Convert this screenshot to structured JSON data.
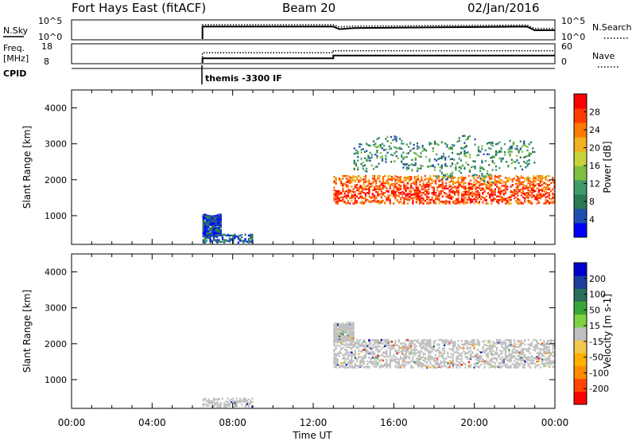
{
  "header": {
    "station": "Fort Hays East (fitACF)",
    "beam": "Beam 20",
    "date": "02/Jan/2016"
  },
  "meta_panels": {
    "nsky": {
      "label": "N.Sky",
      "tick_top": "10^5",
      "tick_bottom": "10^0"
    },
    "nsearch": {
      "label": "N.Search",
      "tick_top": "10^5",
      "tick_bottom": "10^0"
    },
    "freq": {
      "label_top": "Freq.",
      "label_unit": "[MHz]",
      "tick_top": "18",
      "tick_bottom": "8"
    },
    "nave": {
      "label": "Nave",
      "tick_top": "60",
      "tick_bottom": "0"
    },
    "cpid": {
      "label": "CPID",
      "program": "themis -3300 IF"
    }
  },
  "colors": {
    "power_scale": [
      "#0000ff",
      "#1f4fb0",
      "#2a7a52",
      "#3f9a6a",
      "#7fbf3f",
      "#c8d23a",
      "#f0b020",
      "#ff7a00",
      "#ff3c00",
      "#ff0000"
    ],
    "velocity_scale": [
      "#ff0000",
      "#ff4500",
      "#ff8c00",
      "#ffb000",
      "#f2c94c",
      "#c0c0c0",
      "#7dd341",
      "#3aa63a",
      "#2a6f5a",
      "#1f3fa0",
      "#0000cc"
    ],
    "ground_scatter": "#c0c0c0"
  },
  "chart_data": [
    {
      "type": "line",
      "name": "nsky-nsearch",
      "x": [
        6.5,
        6.5,
        13.0,
        13.3,
        14.0,
        22.6,
        23.0,
        24.0
      ],
      "series": [
        {
          "name": "N.Sky",
          "values": [
            0,
            3.4,
            3.4,
            2.7,
            3.0,
            3.4,
            2.4,
            2.4
          ]
        },
        {
          "name": "N.Search",
          "values": [
            0,
            3.9,
            3.9,
            3.3,
            3.5,
            3.8,
            2.9,
            2.9
          ]
        }
      ],
      "ylim": [
        0,
        5
      ]
    },
    {
      "type": "line",
      "name": "freq-nave",
      "x": [
        6.5,
        6.5,
        13.0,
        13.0,
        24.0
      ],
      "series": [
        {
          "name": "Freq.",
          "values": [
            8,
            10.5,
            10.5,
            12.0,
            12.0
          ]
        },
        {
          "name": "Nave",
          "values": [
            0,
            33,
            33,
            40,
            40
          ]
        }
      ],
      "ylim": [
        8,
        18
      ]
    },
    {
      "type": "heatmap",
      "name": "power",
      "title": "",
      "xlabel": "",
      "ylabel": "Slant Range [km]",
      "xlim": [
        0,
        24
      ],
      "ylim": [
        200,
        4500
      ],
      "yticks": [
        1000,
        2000,
        3000,
        4000
      ],
      "colorbar": {
        "label": "Power [dB]",
        "ticks": [
          4,
          8,
          12,
          16,
          20,
          24,
          28
        ],
        "range": [
          0,
          32
        ]
      },
      "regions": [
        {
          "t0": 6.5,
          "t1": 9.0,
          "r0": 200,
          "r1": 450,
          "value": 6
        },
        {
          "t0": 6.5,
          "t1": 7.4,
          "r0": 500,
          "r1": 1050,
          "value": 4
        },
        {
          "t0": 13.0,
          "t1": 24.0,
          "r0": 1300,
          "r1": 2100,
          "value": 24
        },
        {
          "t0": 14.0,
          "t1": 23.0,
          "r0": 2300,
          "r1": 3100,
          "value": 10
        }
      ]
    },
    {
      "type": "heatmap",
      "name": "velocity",
      "title": "",
      "xlabel": "Time UT",
      "ylabel": "Slant Range [km]",
      "xlim": [
        0,
        24
      ],
      "ylim": [
        200,
        4500
      ],
      "yticks": [
        1000,
        2000,
        3000,
        4000
      ],
      "xticks": [
        "00:00",
        "04:00",
        "08:00",
        "12:00",
        "16:00",
        "20:00",
        "00:00"
      ],
      "colorbar": {
        "label": "Velocity [m s-1]",
        "ticks": [
          200,
          100,
          50,
          15,
          -15,
          -50,
          -100,
          -200
        ],
        "range": [
          -250,
          250
        ]
      },
      "regions": [
        {
          "t0": 13.0,
          "t1": 24.0,
          "r0": 1300,
          "r1": 2100,
          "value": 0
        },
        {
          "t0": 13.0,
          "t1": 14.0,
          "r0": 2100,
          "r1": 2600,
          "value": 0
        },
        {
          "t0": 6.5,
          "t1": 9.0,
          "r0": 200,
          "r1": 450,
          "value": 0
        }
      ]
    }
  ]
}
